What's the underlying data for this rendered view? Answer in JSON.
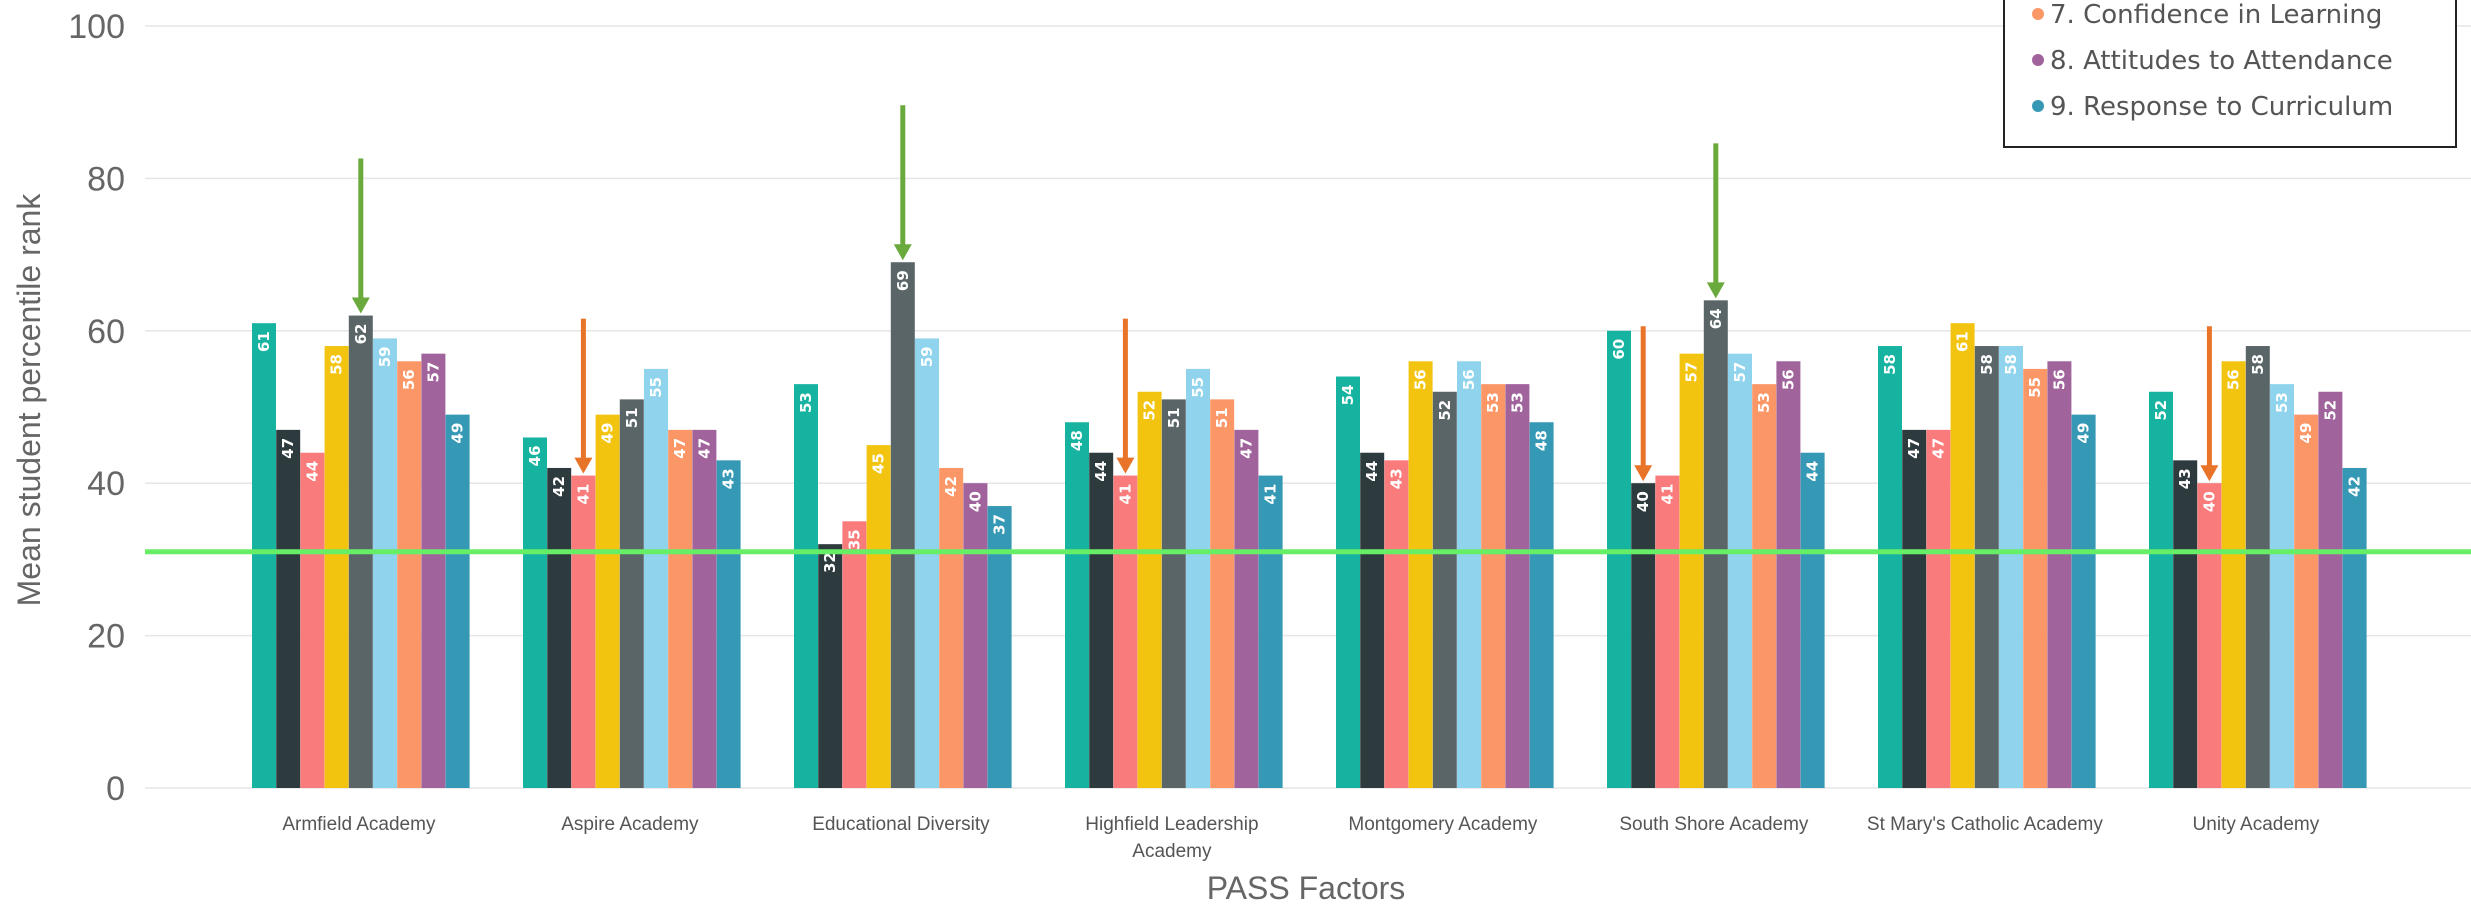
{
  "chart_data": {
    "type": "bar",
    "xlabel": "PASS Factors",
    "ylabel": "Mean student percentile rank",
    "ylim": [
      0,
      100
    ],
    "yticks": [
      0,
      20,
      40,
      60,
      80,
      100
    ],
    "grid": true,
    "legend_position": "top-right",
    "reference_line": {
      "value": 31,
      "color": "#66ee66"
    },
    "categories": [
      [
        "Armfield Academy"
      ],
      [
        "Aspire Academy"
      ],
      [
        "Educational Diversity"
      ],
      [
        "Highfield Leadership",
        "Academy"
      ],
      [
        "Montgomery Academy"
      ],
      [
        "South Shore Academy"
      ],
      [
        "St Mary's Catholic Academy"
      ],
      [
        "Unity Academy"
      ]
    ],
    "series": [
      {
        "color": "#16b3a0",
        "values": [
          61,
          46,
          53,
          48,
          54,
          60,
          58,
          52
        ]
      },
      {
        "color": "#2d3b3e",
        "values": [
          47,
          42,
          32,
          44,
          44,
          40,
          47,
          43
        ]
      },
      {
        "color": "#fa7b7b",
        "values": [
          44,
          41,
          35,
          41,
          43,
          41,
          47,
          40
        ]
      },
      {
        "color": "#f2c40f",
        "values": [
          58,
          49,
          45,
          52,
          56,
          57,
          61,
          56
        ]
      },
      {
        "color": "#5a6568",
        "values": [
          62,
          51,
          69,
          51,
          52,
          64,
          58,
          58
        ]
      },
      {
        "color": "#8fd4ec",
        "values": [
          59,
          55,
          59,
          55,
          56,
          57,
          58,
          53
        ]
      },
      {
        "name": "7. Confidence in Learning",
        "color": "#fb9667",
        "values": [
          56,
          47,
          42,
          51,
          53,
          53,
          55,
          49
        ]
      },
      {
        "name": "8. Attitudes to Attendance",
        "color": "#a1639b",
        "values": [
          57,
          47,
          40,
          47,
          53,
          56,
          56,
          52
        ]
      },
      {
        "name": "9. Response to Curriculum",
        "color": "#3598b5",
        "values": [
          49,
          43,
          37,
          41,
          48,
          44,
          49,
          42
        ]
      }
    ],
    "legend": [
      "7. Confidence in Learning",
      "8. Attitudes to Attendance",
      "9. Response to Curriculum"
    ],
    "annotations": [
      {
        "type": "arrow-down",
        "color": "#6aaa3c",
        "category_index": 0,
        "series_index": 4
      },
      {
        "type": "arrow-down",
        "color": "#e8742a",
        "category_index": 1,
        "series_index": 2
      },
      {
        "type": "arrow-down",
        "color": "#6aaa3c",
        "category_index": 2,
        "series_index": 4
      },
      {
        "type": "arrow-down",
        "color": "#e8742a",
        "category_index": 3,
        "series_index": 2
      },
      {
        "type": "arrow-down",
        "color": "#e8742a",
        "category_index": 5,
        "series_index": 1
      },
      {
        "type": "arrow-down",
        "color": "#6aaa3c",
        "category_index": 5,
        "series_index": 4
      },
      {
        "type": "arrow-down",
        "color": "#e8742a",
        "category_index": 7,
        "series_index": 2
      }
    ]
  }
}
